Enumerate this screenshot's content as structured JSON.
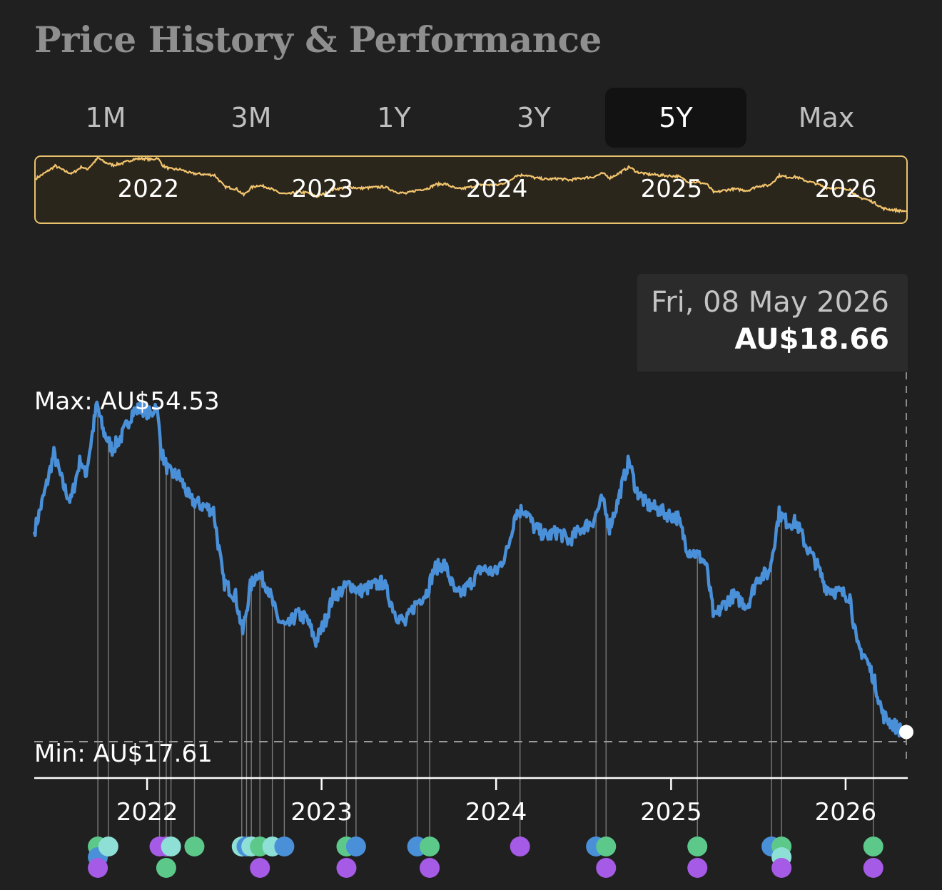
{
  "title": "Price History & Performance",
  "tabs": [
    {
      "label": "1M",
      "active": false
    },
    {
      "label": "3M",
      "active": false
    },
    {
      "label": "1Y",
      "active": false
    },
    {
      "label": "3Y",
      "active": false
    },
    {
      "label": "5Y",
      "active": true
    },
    {
      "label": "Max",
      "active": false
    }
  ],
  "tooltip": {
    "date": "Fri, 08 May 2026",
    "price": "AU$18.66"
  },
  "colors": {
    "line": "#4a90d9",
    "overview_line": "#f2c46d",
    "overview_border": "#e8c26c",
    "marker_green": "#5cc98a",
    "marker_blue": "#4a90d9",
    "marker_cyan": "#8ee0d6",
    "marker_purple": "#a55be6"
  },
  "chart_data": {
    "type": "line",
    "title": "",
    "xlabel": "",
    "ylabel": "",
    "x_tick_labels": [
      "2022",
      "2023",
      "2024",
      "2025",
      "2026"
    ],
    "overview_labels": [
      "2022",
      "2023",
      "2024",
      "2025",
      "2026"
    ],
    "max_label": "Max: AU$54.53",
    "min_label": "Min: AU$17.61",
    "max_value": 54.53,
    "min_value": 17.61,
    "ylim": [
      13.5,
      56
    ],
    "xlim": [
      "2021-05-10",
      "2026-05-08"
    ],
    "grid": false,
    "series": [
      {
        "values": [
          [
            "2021-05-10",
            40.5
          ],
          [
            "2021-06-01",
            44.8
          ],
          [
            "2021-06-20",
            49.0
          ],
          [
            "2021-07-10",
            45.5
          ],
          [
            "2021-07-25",
            43.8
          ],
          [
            "2021-08-15",
            48.5
          ],
          [
            "2021-08-25",
            46.5
          ],
          [
            "2021-09-05",
            50.0
          ],
          [
            "2021-09-18",
            54.4
          ],
          [
            "2021-10-01",
            51.5
          ],
          [
            "2021-10-20",
            49.5
          ],
          [
            "2021-11-10",
            51.0
          ],
          [
            "2021-12-01",
            53.5
          ],
          [
            "2021-12-20",
            54.0
          ],
          [
            "2022-01-10",
            53.2
          ],
          [
            "2022-01-20",
            54.53
          ],
          [
            "2022-02-01",
            49.0
          ],
          [
            "2022-02-15",
            47.0
          ],
          [
            "2022-03-10",
            46.5
          ],
          [
            "2022-04-01",
            44.0
          ],
          [
            "2022-04-20",
            43.5
          ],
          [
            "2022-05-20",
            42.8
          ],
          [
            "2022-06-10",
            35.0
          ],
          [
            "2022-07-05",
            33.5
          ],
          [
            "2022-07-20",
            29.5
          ],
          [
            "2022-08-05",
            34.5
          ],
          [
            "2022-08-20",
            36.0
          ],
          [
            "2022-09-10",
            34.5
          ],
          [
            "2022-10-01",
            31.0
          ],
          [
            "2022-10-20",
            30.0
          ],
          [
            "2022-11-10",
            31.5
          ],
          [
            "2022-12-01",
            31.0
          ],
          [
            "2022-12-20",
            28.5
          ],
          [
            "2023-01-10",
            31.0
          ],
          [
            "2023-01-25",
            33.5
          ],
          [
            "2023-02-10",
            34.0
          ],
          [
            "2023-03-01",
            34.8
          ],
          [
            "2023-03-20",
            34.0
          ],
          [
            "2023-04-15",
            34.5
          ],
          [
            "2023-05-10",
            35.0
          ],
          [
            "2023-06-05",
            31.5
          ],
          [
            "2023-06-25",
            30.5
          ],
          [
            "2023-07-15",
            32.5
          ],
          [
            "2023-08-10",
            34.0
          ],
          [
            "2023-08-25",
            36.5
          ],
          [
            "2023-09-15",
            37.0
          ],
          [
            "2023-10-10",
            33.5
          ],
          [
            "2023-10-25",
            34.0
          ],
          [
            "2023-11-10",
            35.0
          ],
          [
            "2023-12-01",
            36.5
          ],
          [
            "2024-01-01",
            36.0
          ],
          [
            "2024-01-25",
            38.5
          ],
          [
            "2024-02-10",
            42.5
          ],
          [
            "2024-03-01",
            43.0
          ],
          [
            "2024-03-20",
            41.0
          ],
          [
            "2024-04-15",
            40.0
          ],
          [
            "2024-05-10",
            40.5
          ],
          [
            "2024-06-01",
            39.5
          ],
          [
            "2024-07-01",
            41.0
          ],
          [
            "2024-07-20",
            41.5
          ],
          [
            "2024-08-10",
            44.0
          ],
          [
            "2024-08-25",
            41.0
          ],
          [
            "2024-09-10",
            43.5
          ],
          [
            "2024-09-25",
            46.5
          ],
          [
            "2024-10-05",
            48.3
          ],
          [
            "2024-10-20",
            45.0
          ],
          [
            "2024-11-10",
            43.5
          ],
          [
            "2024-12-01",
            43.0
          ],
          [
            "2024-12-20",
            42.5
          ],
          [
            "2025-01-15",
            42.0
          ],
          [
            "2025-02-05",
            38.5
          ],
          [
            "2025-02-25",
            38.0
          ],
          [
            "2025-03-15",
            37.0
          ],
          [
            "2025-04-01",
            31.0
          ],
          [
            "2025-04-20",
            32.5
          ],
          [
            "2025-05-10",
            33.5
          ],
          [
            "2025-06-10",
            32.5
          ],
          [
            "2025-07-01",
            35.5
          ],
          [
            "2025-07-25",
            36.0
          ],
          [
            "2025-08-15",
            42.5
          ],
          [
            "2025-09-01",
            41.5
          ],
          [
            "2025-09-20",
            41.5
          ],
          [
            "2025-10-10",
            39.0
          ],
          [
            "2025-11-01",
            37.0
          ],
          [
            "2025-11-20",
            34.5
          ],
          [
            "2025-12-10",
            34.0
          ],
          [
            "2026-01-10",
            33.5
          ],
          [
            "2026-01-25",
            28.0
          ],
          [
            "2026-02-10",
            27.0
          ],
          [
            "2026-03-01",
            24.5
          ],
          [
            "2026-03-20",
            20.5
          ],
          [
            "2026-04-10",
            19.5
          ],
          [
            "2026-04-25",
            18.9
          ],
          [
            "2026-05-08",
            18.66
          ]
        ]
      }
    ],
    "markers": [
      {
        "date": "2021-09-20",
        "colors": [
          "green",
          "blue",
          "purple"
        ]
      },
      {
        "date": "2021-10-12",
        "colors": [
          "cyan"
        ]
      },
      {
        "date": "2022-01-27",
        "colors": [
          "purple"
        ]
      },
      {
        "date": "2022-02-10",
        "colors": [
          "purple",
          "green"
        ]
      },
      {
        "date": "2022-02-20",
        "colors": [
          "cyan"
        ]
      },
      {
        "date": "2022-04-10",
        "colors": [
          "green"
        ]
      },
      {
        "date": "2022-07-18",
        "colors": [
          "cyan"
        ]
      },
      {
        "date": "2022-07-28",
        "colors": [
          "blue"
        ]
      },
      {
        "date": "2022-08-07",
        "colors": [
          "cyan"
        ]
      },
      {
        "date": "2022-08-25",
        "colors": [
          "green",
          "purple"
        ]
      },
      {
        "date": "2022-09-20",
        "colors": [
          "cyan"
        ]
      },
      {
        "date": "2022-10-15",
        "colors": [
          "blue"
        ]
      },
      {
        "date": "2023-02-22",
        "colors": [
          "green",
          "purple"
        ]
      },
      {
        "date": "2023-03-14",
        "colors": [
          "blue"
        ]
      },
      {
        "date": "2023-07-20",
        "colors": [
          "blue"
        ]
      },
      {
        "date": "2023-08-15",
        "colors": [
          "green",
          "purple"
        ]
      },
      {
        "date": "2024-02-20",
        "colors": [
          "purple"
        ]
      },
      {
        "date": "2024-07-28",
        "colors": [
          "blue"
        ]
      },
      {
        "date": "2024-08-18",
        "colors": [
          "green",
          "purple"
        ]
      },
      {
        "date": "2025-02-25",
        "colors": [
          "green",
          "purple"
        ]
      },
      {
        "date": "2025-07-30",
        "colors": [
          "blue"
        ]
      },
      {
        "date": "2025-08-20",
        "colors": [
          "green",
          "cyan",
          "purple"
        ]
      },
      {
        "date": "2026-02-28",
        "colors": [
          "green",
          "purple"
        ]
      }
    ]
  }
}
